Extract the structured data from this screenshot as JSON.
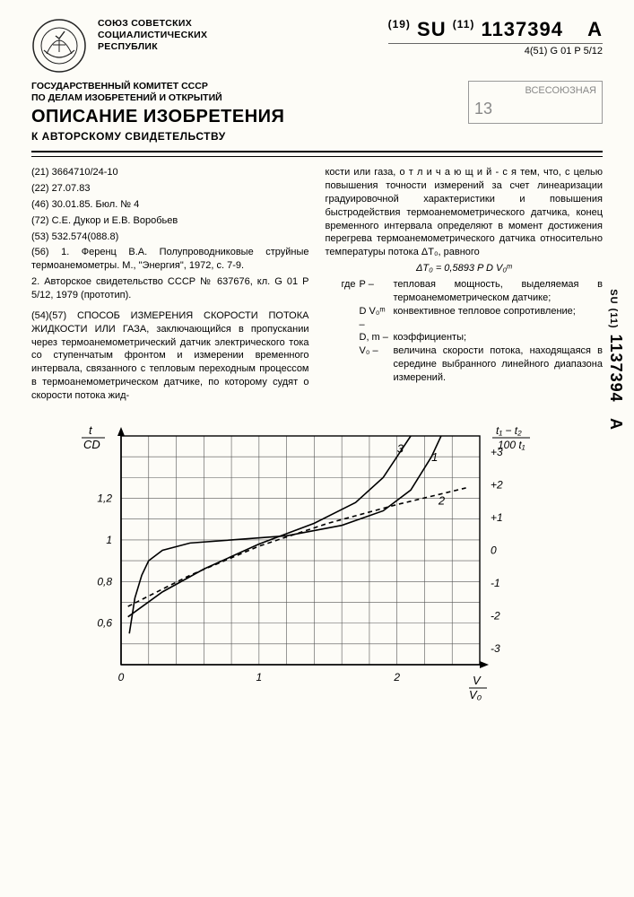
{
  "header": {
    "union_line1": "СОЮЗ СОВЕТСКИХ",
    "union_line2": "СОЦИАЛИСТИЧЕСКИХ",
    "union_line3": "РЕСПУБЛИК",
    "su_prefix": "(19)",
    "su_code": "SU",
    "pub_prefix": "(11)",
    "pub_number": "1137394",
    "pub_suffix": "A",
    "ipc_prefix": "4(51)",
    "ipc": "G 01 P 5/12",
    "committee_line1": "ГОСУДАРСТВЕННЫЙ КОМИТЕТ СССР",
    "committee_line2": "ПО ДЕЛАМ ИЗОБРЕТЕНИЙ И ОТКРЫТИЙ",
    "title_main": "ОПИСАНИЕ ИЗОБРЕТЕНИЯ",
    "title_sub": "К АВТОРСКОМУ СВИДЕТЕЛЬСТВУ",
    "stamp_text1": "ВСЕСОЮЗНАЯ",
    "stamp_text2": "13"
  },
  "biblio": {
    "l21": "(21) 3664710/24-10",
    "l22": "(22) 27.07.83",
    "l46": "(46) 30.01.85. Бюл. № 4",
    "l72": "(72) С.Е. Дукор и Е.В. Воробьев",
    "l53": "(53) 532.574(088.8)",
    "l56_1": "(56) 1. Ференц В.А. Полупроводниковые струйные термоанемометры. М., \"Энергия\", 1972, с. 7-9.",
    "l56_2": "2. Авторское свидетельство СССР № 637676, кл. G 01 P 5/12, 1979 (прототип).",
    "abstract_head": "(54)(57) СПОСОБ ИЗМЕРЕНИЯ СКОРОСТИ ПОТОКА ЖИДКОСТИ ИЛИ ГАЗА, заключающийся в пропускании через термоанемометрический датчик электрического тока со ступенчатым фронтом и измерении временного интервала, связанного с тепловым переходным процессом в термоанемометрическом датчике, по которому судят о скорости потока жид-"
  },
  "col2": {
    "p1": "кости или газа, о т л и ч а ю щ и й - с я тем, что, с целью повышения точности измерений за счет линеаризации градуировочной характеристики и повышения быстродействия термоанемометрического датчика, конец временного интервала определяют в момент достижения перегрева термоанемометрического датчика относительно температуры потока ΔТ₀, равного",
    "formula": "ΔТ₀ = 0,5893 P D V₀ᵐ",
    "where": "где",
    "def_P_l": "P –",
    "def_P": "тепловая мощность, выделяемая в термоанемометрическом датчике;",
    "def_DV_l": "D V₀ᵐ –",
    "def_DV": "конвективное тепловое сопротивление;",
    "def_Dm_l": "D, m –",
    "def_Dm": "коэффициенты;",
    "def_V0_l": "V₀ –",
    "def_V0": "величина скорости потока, находящаяся в середине выбранного линейного диапазона измерений."
  },
  "side": {
    "code": "SU ⁽¹¹⁾ 1137394   A"
  },
  "chart": {
    "type": "line",
    "background": "#fdfcf7",
    "grid_color": "#555555",
    "axis_color": "#000000",
    "line_color": "#000000",
    "line_width": 1.6,
    "dashed_pattern": "5,4",
    "y_left_label": "t / CD",
    "y_left_ticks": [
      0.6,
      0.8,
      1.0,
      1.2
    ],
    "x_label": "V / V₀",
    "x_ticks": [
      0,
      1,
      2
    ],
    "y_right_label": "(t₁ − t₂) / 100 t₁",
    "y_right_ticks": [
      -3,
      -2,
      -1,
      0,
      1,
      2,
      3
    ],
    "xlim": [
      0,
      2.6
    ],
    "ylim_left": [
      0.4,
      1.5
    ],
    "ylim_right": [
      -3.5,
      3.5
    ],
    "series": [
      {
        "name": "1",
        "label_pos": [
          2.25,
          1.38
        ],
        "dashed": false,
        "points": [
          [
            0.06,
            0.55
          ],
          [
            0.1,
            0.72
          ],
          [
            0.15,
            0.83
          ],
          [
            0.2,
            0.9
          ],
          [
            0.3,
            0.95
          ],
          [
            0.5,
            0.985
          ],
          [
            0.8,
            1.0
          ],
          [
            1.2,
            1.02
          ],
          [
            1.6,
            1.07
          ],
          [
            1.9,
            1.14
          ],
          [
            2.1,
            1.24
          ],
          [
            2.25,
            1.4
          ],
          [
            2.32,
            1.5
          ]
        ]
      },
      {
        "name": "2",
        "label_pos": [
          2.3,
          1.17
        ],
        "dashed": true,
        "points": [
          [
            0.05,
            0.68
          ],
          [
            0.5,
            0.83
          ],
          [
            1.0,
            0.97
          ],
          [
            1.5,
            1.08
          ],
          [
            2.0,
            1.17
          ],
          [
            2.5,
            1.25
          ]
        ]
      },
      {
        "name": "3",
        "label_pos": [
          2.0,
          1.42
        ],
        "dashed": false,
        "points": [
          [
            0.05,
            0.63
          ],
          [
            0.3,
            0.75
          ],
          [
            0.6,
            0.86
          ],
          [
            1.0,
            0.98
          ],
          [
            1.4,
            1.08
          ],
          [
            1.7,
            1.18
          ],
          [
            1.9,
            1.3
          ],
          [
            2.05,
            1.45
          ],
          [
            2.1,
            1.5
          ]
        ]
      }
    ],
    "title_fontsize": 13,
    "tick_fontsize": 12
  }
}
